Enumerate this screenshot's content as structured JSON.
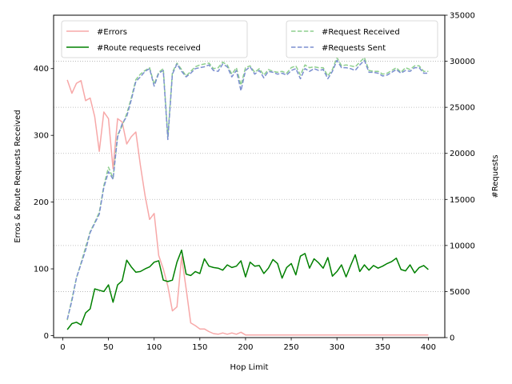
{
  "chart_data": {
    "type": "line",
    "title": "",
    "xlabel": "Hop Limit",
    "ylabel_left": "Erros & Route Requests Received",
    "ylabel_right": "#Requests",
    "xlim": [
      -10,
      418
    ],
    "ylim_left": [
      -3,
      480
    ],
    "ylim_right": [
      0,
      35000
    ],
    "xticks": [
      0,
      50,
      100,
      150,
      200,
      250,
      300,
      350,
      400
    ],
    "yticks_left": [
      0,
      100,
      200,
      300,
      400
    ],
    "yticks_right": [
      0,
      5000,
      10000,
      15000,
      20000,
      25000,
      30000,
      35000
    ],
    "grid": "right-axis horizontal dotted",
    "legend_left": {
      "placement": "upper-left",
      "entries": [
        "#Errors",
        "#Route requests received"
      ]
    },
    "legend_right": {
      "placement": "upper-right",
      "entries": [
        "#Request Received",
        "#Requests Sent"
      ]
    },
    "x": [
      5,
      10,
      15,
      20,
      25,
      30,
      35,
      40,
      45,
      50,
      55,
      60,
      65,
      70,
      75,
      80,
      85,
      90,
      95,
      100,
      105,
      110,
      115,
      120,
      125,
      130,
      135,
      140,
      145,
      150,
      155,
      160,
      165,
      170,
      175,
      180,
      185,
      190,
      195,
      200,
      205,
      210,
      215,
      220,
      225,
      230,
      235,
      240,
      245,
      250,
      255,
      260,
      265,
      270,
      275,
      280,
      285,
      290,
      295,
      300,
      305,
      310,
      315,
      320,
      325,
      330,
      335,
      340,
      345,
      350,
      355,
      360,
      365,
      370,
      375,
      380,
      385,
      390,
      395,
      400
    ],
    "series": [
      {
        "name": "#Errors",
        "axis": "left",
        "color": "#f7a8a8",
        "style": "solid",
        "values": [
          383,
          363,
          378,
          382,
          352,
          356,
          328,
          276,
          335,
          325,
          250,
          325,
          320,
          287,
          298,
          305,
          255,
          210,
          174,
          183,
          120,
          100,
          74,
          37,
          43,
          118,
          70,
          19,
          15,
          10,
          10,
          6,
          3,
          2,
          4,
          2,
          4,
          2,
          5,
          1,
          1,
          1,
          1,
          1,
          1,
          1,
          1,
          1,
          1,
          1,
          1,
          1,
          1,
          1,
          1,
          1,
          1,
          1,
          1,
          1,
          1,
          1,
          1,
          1,
          1,
          1,
          1,
          1,
          1,
          1,
          1,
          1,
          1,
          1,
          1,
          1,
          1,
          1,
          1,
          1
        ]
      },
      {
        "name": "#Route requests received",
        "axis": "left",
        "color": "#008000",
        "style": "solid",
        "values": [
          9,
          18,
          20,
          16,
          34,
          40,
          70,
          68,
          66,
          76,
          50,
          76,
          82,
          113,
          103,
          95,
          96,
          100,
          103,
          110,
          112,
          83,
          81,
          83,
          110,
          128,
          92,
          90,
          96,
          93,
          115,
          104,
          102,
          101,
          98,
          106,
          102,
          104,
          112,
          88,
          110,
          104,
          105,
          93,
          101,
          114,
          108,
          86,
          102,
          108,
          91,
          119,
          123,
          101,
          115,
          109,
          101,
          117,
          89,
          96,
          106,
          88,
          105,
          121,
          96,
          106,
          98,
          105,
          101,
          104,
          108,
          111,
          116,
          99,
          97,
          106,
          94,
          102,
          105,
          99
        ]
      },
      {
        "name": "#Request Received",
        "axis": "right",
        "color": "#8ecf8e",
        "style": "dashed",
        "values": [
          1900,
          4200,
          6500,
          8100,
          9800,
          11500,
          12500,
          13600,
          16500,
          18500,
          17300,
          22000,
          23000,
          24300,
          26000,
          28000,
          28600,
          29000,
          29300,
          27500,
          28800,
          29200,
          21800,
          28800,
          29800,
          29100,
          28400,
          28900,
          29400,
          29600,
          29700,
          29800,
          29200,
          29300,
          29900,
          29600,
          28600,
          29300,
          27400,
          29300,
          29500,
          28800,
          29200,
          28500,
          29100,
          28900,
          28800,
          28900,
          28700,
          29300,
          29500,
          28500,
          29600,
          29300,
          29400,
          29300,
          29300,
          28400,
          29100,
          30400,
          29500,
          29600,
          29500,
          29400,
          29900,
          30400,
          29000,
          28900,
          28900,
          28600,
          28700,
          29000,
          29300,
          28800,
          29300,
          29100,
          29500,
          29500,
          28900,
          28900
        ]
      },
      {
        "name": "#Requests Sent",
        "axis": "right",
        "color": "#7b8fd0",
        "style": "dashed",
        "values": [
          2000,
          4000,
          6500,
          8000,
          9500,
          11400,
          12400,
          13400,
          16300,
          18000,
          17200,
          21800,
          23200,
          24000,
          25800,
          27800,
          28300,
          28900,
          29200,
          27300,
          28700,
          29000,
          21500,
          28600,
          29700,
          28900,
          28300,
          28700,
          29200,
          29300,
          29400,
          29600,
          29000,
          28900,
          29700,
          29400,
          28300,
          29000,
          26800,
          29000,
          29400,
          28600,
          29000,
          28200,
          28900,
          28800,
          28600,
          28700,
          28500,
          29000,
          29200,
          28100,
          29200,
          28900,
          29200,
          29000,
          29100,
          28100,
          28900,
          30100,
          29300,
          29300,
          29200,
          29000,
          29600,
          30100,
          28800,
          28800,
          28700,
          28400,
          28500,
          28800,
          29100,
          28700,
          29000,
          28900,
          29300,
          29300,
          28700,
          28700
        ]
      }
    ]
  }
}
